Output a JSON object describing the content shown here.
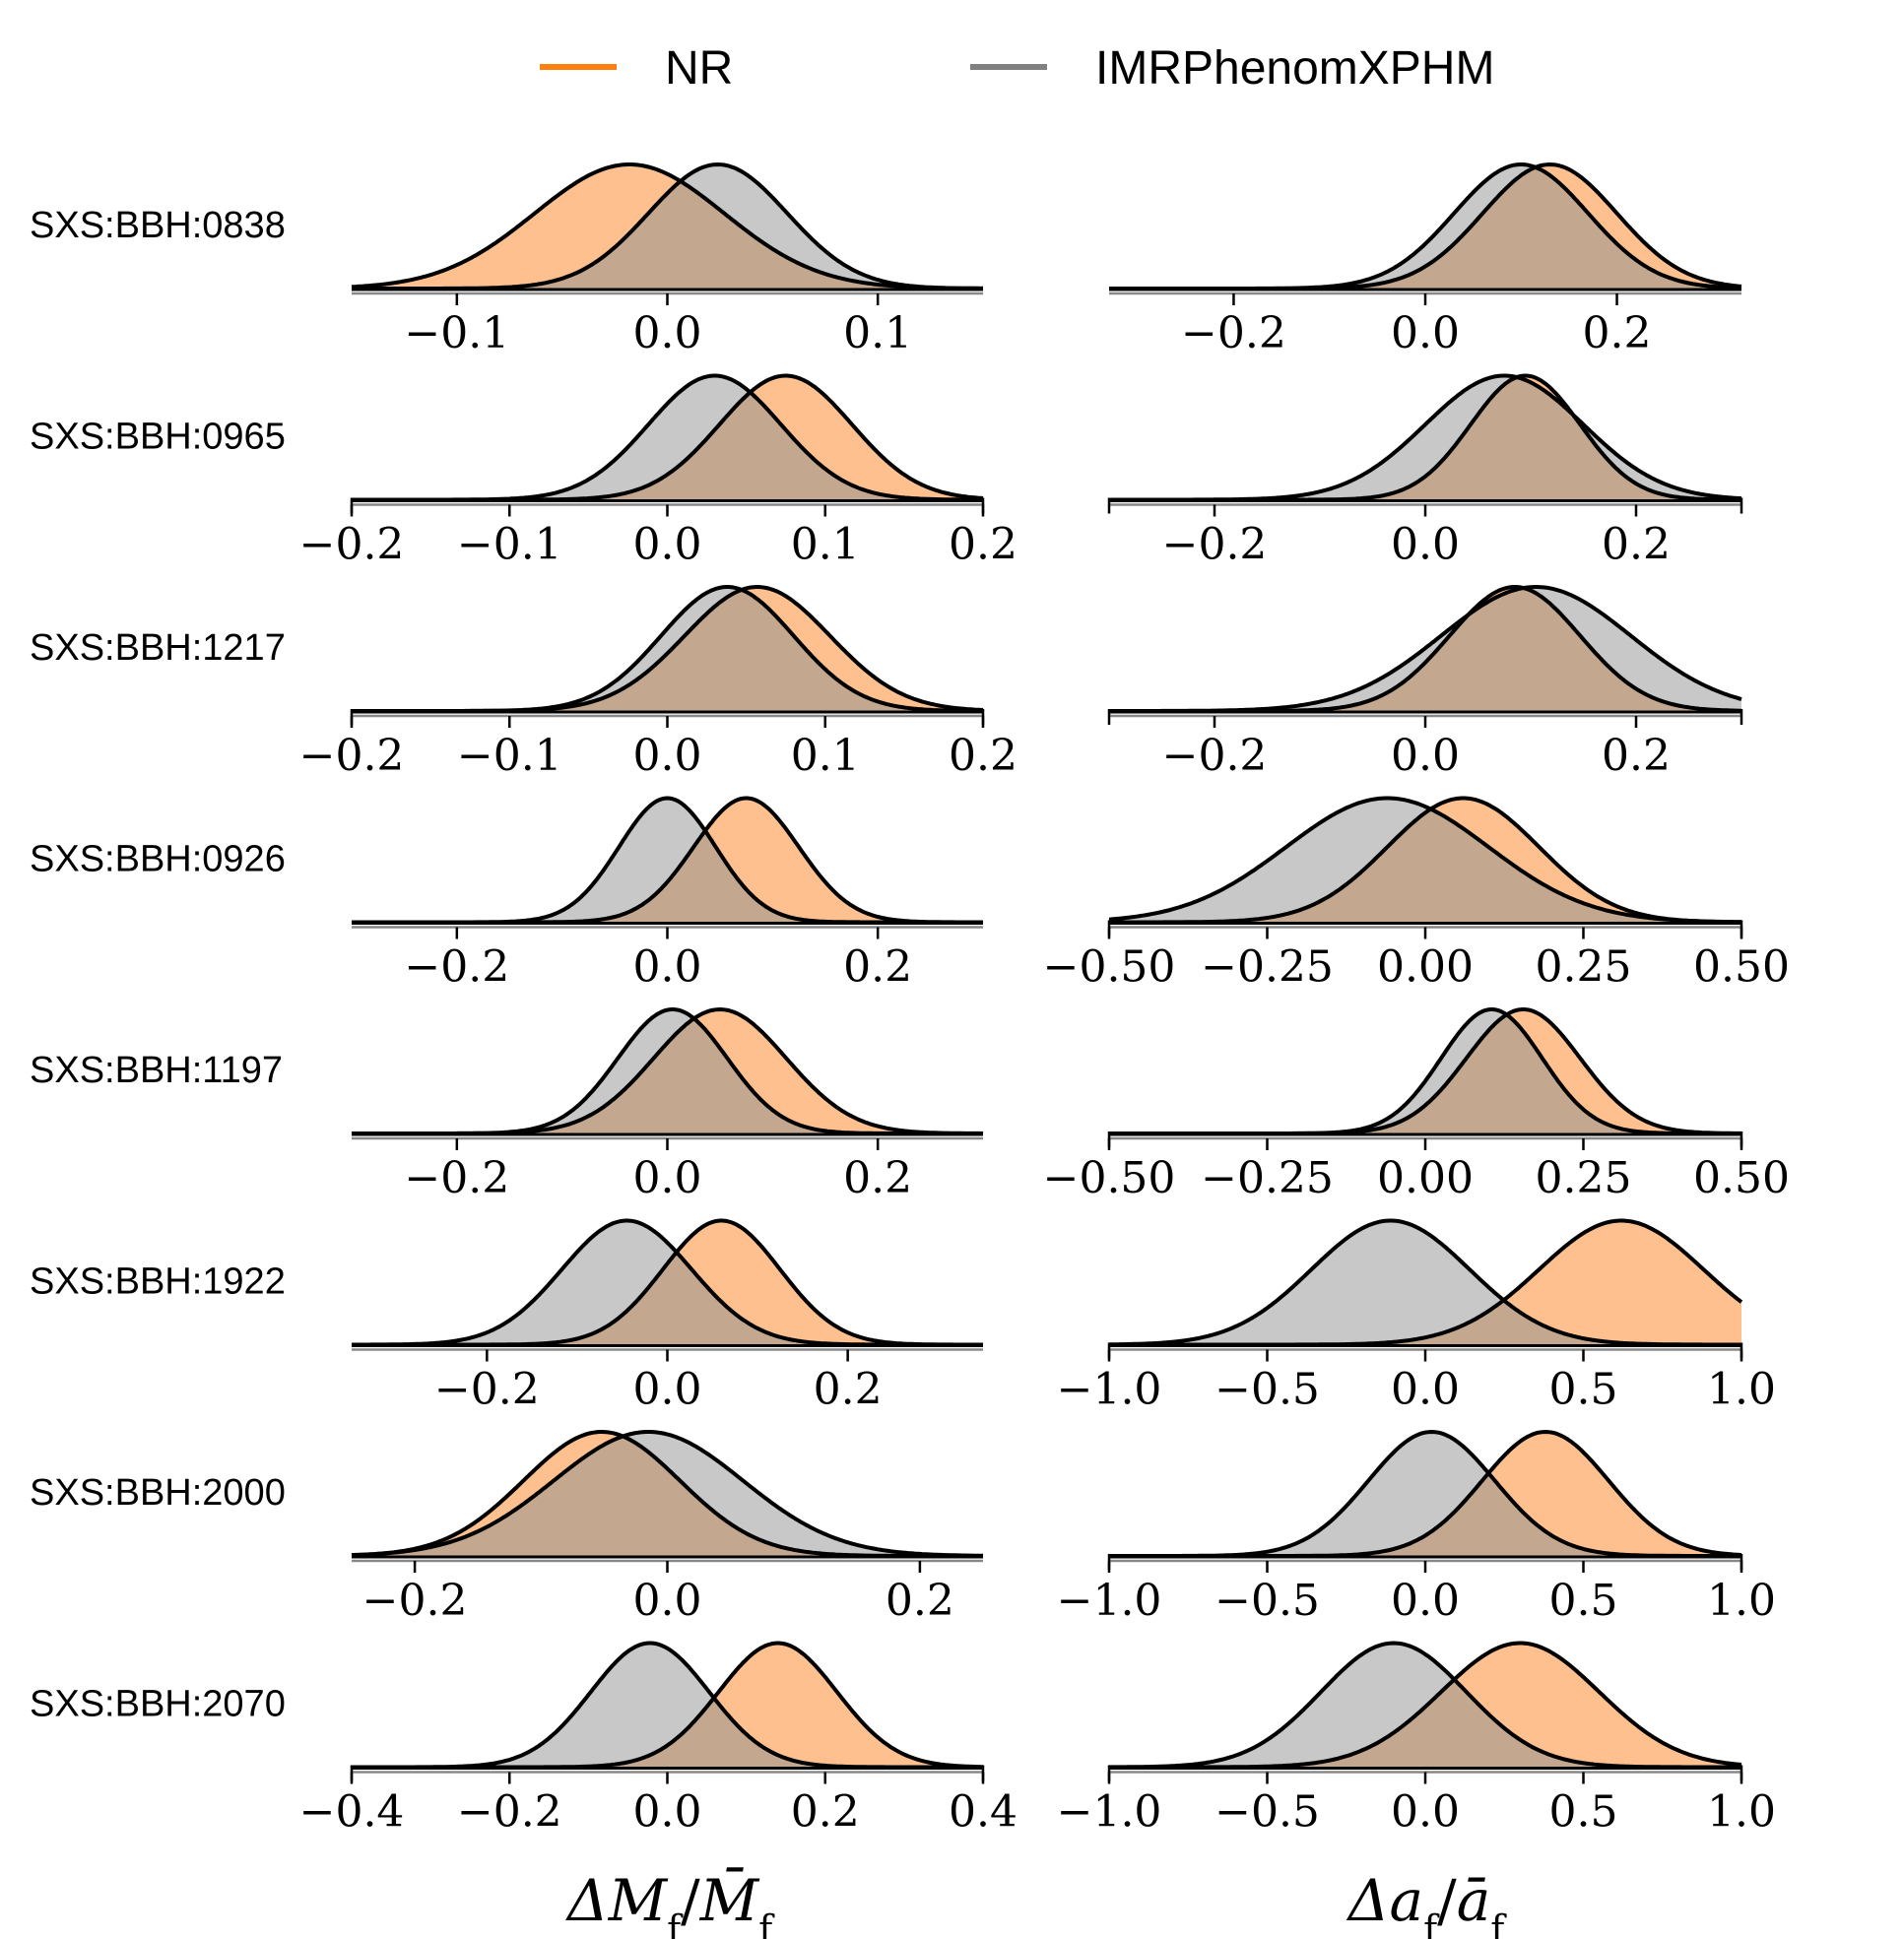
{
  "legend": [
    {
      "label": "NR",
      "color": "#ff7f0e"
    },
    {
      "label": "IMRPhenomXPHM",
      "color": "#808080"
    }
  ],
  "colors": {
    "nr_fill": "#fdc08e",
    "imr_fill": "#c8c8c8",
    "overlap_fill": "#c4a78f",
    "outline": "#000000"
  },
  "axis_titles": {
    "mass": {
      "lead": "ΔM",
      "sub": "f",
      "sep": "/",
      "bar": "M̄",
      "sub2": "f"
    },
    "spin": {
      "lead": "Δa",
      "sub": "f",
      "sep": "/",
      "bar": "ā",
      "sub2": "f"
    }
  },
  "chart_data": [
    {
      "type": "area",
      "row_label": "SXS:BBH:0838",
      "panels": [
        {
          "quantity": "mass",
          "xlim": [
            -0.15,
            0.15
          ],
          "ticks": [
            -0.1,
            0.0,
            0.1
          ],
          "tick_labels": [
            "−0.1",
            "0.0",
            "0.1"
          ],
          "axis_ends": false,
          "series": [
            {
              "name": "NR",
              "peak": -0.018,
              "sigma": 0.045
            },
            {
              "name": "IMRPhenomXPHM",
              "peak": 0.024,
              "sigma": 0.033
            }
          ]
        },
        {
          "quantity": "spin",
          "xlim": [
            -0.33,
            0.33
          ],
          "ticks": [
            -0.2,
            0.0,
            0.2
          ],
          "tick_labels": [
            "−0.2",
            "0.0",
            "0.2"
          ],
          "axis_ends": false,
          "series": [
            {
              "name": "NR",
              "peak": 0.13,
              "sigma": 0.07
            },
            {
              "name": "IMRPhenomXPHM",
              "peak": 0.1,
              "sigma": 0.07
            }
          ]
        }
      ]
    },
    {
      "type": "area",
      "row_label": "SXS:BBH:0965",
      "panels": [
        {
          "quantity": "mass",
          "xlim": [
            -0.2,
            0.2
          ],
          "ticks": [
            -0.2,
            -0.1,
            0.0,
            0.1,
            0.2
          ],
          "tick_labels": [
            "−0.2",
            "−0.1",
            "0.0",
            "0.1",
            "0.2"
          ],
          "axis_ends": true,
          "series": [
            {
              "name": "NR",
              "peak": 0.075,
              "sigma": 0.042
            },
            {
              "name": "IMRPhenomXPHM",
              "peak": 0.03,
              "sigma": 0.042
            }
          ]
        },
        {
          "quantity": "spin",
          "xlim": [
            -0.3,
            0.3
          ],
          "ticks": [
            -0.2,
            0.0,
            0.2
          ],
          "tick_labels": [
            "−0.2",
            "0.0",
            "0.2"
          ],
          "axis_ends": true,
          "series": [
            {
              "name": "NR",
              "peak": 0.095,
              "sigma": 0.052
            },
            {
              "name": "IMRPhenomXPHM",
              "peak": 0.075,
              "sigma": 0.075
            }
          ]
        }
      ]
    },
    {
      "type": "area",
      "row_label": "SXS:BBH:1217",
      "panels": [
        {
          "quantity": "mass",
          "xlim": [
            -0.2,
            0.2
          ],
          "ticks": [
            -0.2,
            -0.1,
            0.0,
            0.1,
            0.2
          ],
          "tick_labels": [
            "−0.2",
            "−0.1",
            "0.0",
            "0.1",
            "0.2"
          ],
          "axis_ends": true,
          "series": [
            {
              "name": "NR",
              "peak": 0.057,
              "sigma": 0.046
            },
            {
              "name": "IMRPhenomXPHM",
              "peak": 0.038,
              "sigma": 0.042
            }
          ]
        },
        {
          "quantity": "spin",
          "xlim": [
            -0.3,
            0.3
          ],
          "ticks": [
            -0.2,
            0.0,
            0.2
          ],
          "tick_labels": [
            "−0.2",
            "0.0",
            "0.2"
          ],
          "axis_ends": true,
          "series": [
            {
              "name": "NR",
              "peak": 0.085,
              "sigma": 0.062
            },
            {
              "name": "IMRPhenomXPHM",
              "peak": 0.105,
              "sigma": 0.09
            }
          ]
        }
      ]
    },
    {
      "type": "area",
      "row_label": "SXS:BBH:0926",
      "panels": [
        {
          "quantity": "mass",
          "xlim": [
            -0.3,
            0.3
          ],
          "ticks": [
            -0.2,
            0.0,
            0.2
          ],
          "tick_labels": [
            "−0.2",
            "0.0",
            "0.2"
          ],
          "axis_ends": false,
          "series": [
            {
              "name": "NR",
              "peak": 0.075,
              "sigma": 0.05
            },
            {
              "name": "IMRPhenomXPHM",
              "peak": 0.0,
              "sigma": 0.046
            }
          ]
        },
        {
          "quantity": "spin",
          "xlim": [
            -0.5,
            0.5
          ],
          "ticks": [
            -0.5,
            -0.25,
            0.0,
            0.25,
            0.5
          ],
          "tick_labels": [
            "−0.50",
            "−0.25",
            "0.00",
            "0.25",
            "0.50"
          ],
          "axis_ends": true,
          "series": [
            {
              "name": "NR",
              "peak": 0.06,
              "sigma": 0.12
            },
            {
              "name": "IMRPhenomXPHM",
              "peak": -0.06,
              "sigma": 0.16
            }
          ]
        }
      ]
    },
    {
      "type": "area",
      "row_label": "SXS:BBH:1197",
      "panels": [
        {
          "quantity": "mass",
          "xlim": [
            -0.3,
            0.3
          ],
          "ticks": [
            -0.2,
            0.0,
            0.2
          ],
          "tick_labels": [
            "−0.2",
            "0.0",
            "0.2"
          ],
          "axis_ends": false,
          "series": [
            {
              "name": "NR",
              "peak": 0.05,
              "sigma": 0.063
            },
            {
              "name": "IMRPhenomXPHM",
              "peak": 0.005,
              "sigma": 0.052
            }
          ]
        },
        {
          "quantity": "spin",
          "xlim": [
            -0.5,
            0.5
          ],
          "ticks": [
            -0.5,
            -0.25,
            0.0,
            0.25,
            0.5
          ],
          "tick_labels": [
            "−0.50",
            "−0.25",
            "0.00",
            "0.25",
            "0.50"
          ],
          "axis_ends": true,
          "series": [
            {
              "name": "NR",
              "peak": 0.155,
              "sigma": 0.09
            },
            {
              "name": "IMRPhenomXPHM",
              "peak": 0.105,
              "sigma": 0.08
            }
          ]
        }
      ]
    },
    {
      "type": "area",
      "row_label": "SXS:BBH:1922",
      "panels": [
        {
          "quantity": "mass",
          "xlim": [
            -0.35,
            0.35
          ],
          "ticks": [
            -0.2,
            0.0,
            0.2
          ],
          "tick_labels": [
            "−0.2",
            "0.0",
            "0.2"
          ],
          "axis_ends": false,
          "series": [
            {
              "name": "NR",
              "peak": 0.06,
              "sigma": 0.065
            },
            {
              "name": "IMRPhenomXPHM",
              "peak": -0.045,
              "sigma": 0.072
            }
          ]
        },
        {
          "quantity": "spin",
          "xlim": [
            -1.0,
            1.0
          ],
          "ticks": [
            -1.0,
            -0.5,
            0.0,
            0.5,
            1.0
          ],
          "tick_labels": [
            "−1.0",
            "−0.5",
            "0.0",
            "0.5",
            "1.0"
          ],
          "axis_ends": true,
          "series": [
            {
              "name": "NR",
              "peak": 0.62,
              "sigma": 0.26
            },
            {
              "name": "IMRPhenomXPHM",
              "peak": -0.11,
              "sigma": 0.25
            }
          ]
        }
      ]
    },
    {
      "type": "area",
      "row_label": "SXS:BBH:2000",
      "panels": [
        {
          "quantity": "mass",
          "xlim": [
            -0.25,
            0.25
          ],
          "ticks": [
            -0.2,
            0.0,
            0.2
          ],
          "tick_labels": [
            "−0.2",
            "0.0",
            "0.2"
          ],
          "axis_ends": false,
          "series": [
            {
              "name": "NR",
              "peak": -0.052,
              "sigma": 0.062
            },
            {
              "name": "IMRPhenomXPHM",
              "peak": -0.015,
              "sigma": 0.075
            }
          ]
        },
        {
          "quantity": "spin",
          "xlim": [
            -1.0,
            1.0
          ],
          "ticks": [
            -1.0,
            -0.5,
            0.0,
            0.5,
            1.0
          ],
          "tick_labels": [
            "−1.0",
            "−0.5",
            "0.0",
            "0.5",
            "1.0"
          ],
          "axis_ends": true,
          "series": [
            {
              "name": "NR",
              "peak": 0.38,
              "sigma": 0.2
            },
            {
              "name": "IMRPhenomXPHM",
              "peak": 0.02,
              "sigma": 0.2
            }
          ]
        }
      ]
    },
    {
      "type": "area",
      "row_label": "SXS:BBH:2070",
      "panels": [
        {
          "quantity": "mass",
          "xlim": [
            -0.4,
            0.4
          ],
          "ticks": [
            -0.4,
            -0.2,
            0.0,
            0.2,
            0.4
          ],
          "tick_labels": [
            "−0.4",
            "−0.2",
            "0.0",
            "0.2",
            "0.4"
          ],
          "axis_ends": true,
          "series": [
            {
              "name": "NR",
              "peak": 0.14,
              "sigma": 0.075
            },
            {
              "name": "IMRPhenomXPHM",
              "peak": -0.022,
              "sigma": 0.075
            }
          ]
        },
        {
          "quantity": "spin",
          "xlim": [
            -1.0,
            1.0
          ],
          "ticks": [
            -1.0,
            -0.5,
            0.0,
            0.5,
            1.0
          ],
          "tick_labels": [
            "−1.0",
            "−0.5",
            "0.0",
            "0.5",
            "1.0"
          ],
          "axis_ends": true,
          "series": [
            {
              "name": "NR",
              "peak": 0.3,
              "sigma": 0.25
            },
            {
              "name": "IMRPhenomXPHM",
              "peak": -0.1,
              "sigma": 0.23
            }
          ]
        }
      ]
    }
  ]
}
